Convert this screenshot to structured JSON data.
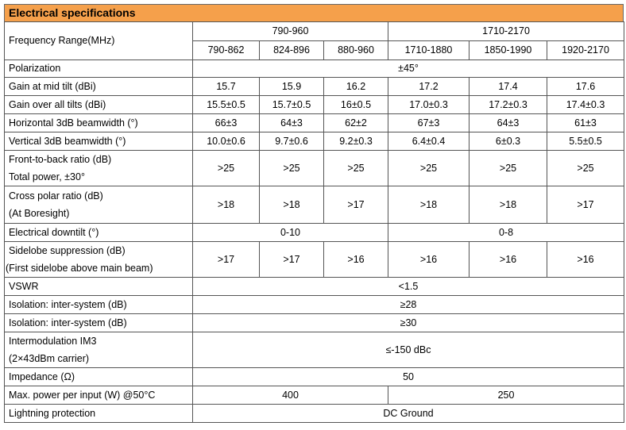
{
  "title": "Electrical specifications",
  "freq": {
    "label": "Frequency Range(MHz)",
    "groups": [
      "790-960",
      "1710-2170"
    ],
    "bands": [
      "790-862",
      "824-896",
      "880-960",
      "1710-1880",
      "1850-1990",
      "1920-2170"
    ]
  },
  "polarization": {
    "label": "Polarization",
    "value": "±45°"
  },
  "gain_mid": {
    "label": "Gain at mid tilt (dBi)",
    "values": [
      "15.7",
      "15.9",
      "16.2",
      "17.2",
      "17.4",
      "17.6"
    ]
  },
  "gain_all": {
    "label": "Gain over all tilts (dBi)",
    "values": [
      "15.5±0.5",
      "15.7±0.5",
      "16±0.5",
      "17.0±0.3",
      "17.2±0.3",
      "17.4±0.3"
    ]
  },
  "hbw": {
    "label": "Horizontal 3dB beamwidth (°)",
    "values": [
      "66±3",
      "64±3",
      "62±2",
      "67±3",
      "64±3",
      "61±3"
    ]
  },
  "vbw": {
    "label": "Vertical 3dB beamwidth (°)",
    "values": [
      "10.0±0.6",
      "9.7±0.6",
      "9.2±0.3",
      "6.4±0.4",
      "6±0.3",
      "5.5±0.5"
    ]
  },
  "ftb": {
    "label_line1": "Front-to-back ratio (dB)",
    "label_line2": "Total power, ±30°",
    "values": [
      ">25",
      ">25",
      ">25",
      ">25",
      ">25",
      ">25"
    ]
  },
  "cpr": {
    "label_line1": "Cross polar ratio (dB)",
    "label_line2": "(At Boresight)",
    "values": [
      ">18",
      ">18",
      ">17",
      ">18",
      ">18",
      ">17"
    ]
  },
  "downtilt": {
    "label": "Electrical downtilt (°)",
    "values": [
      "0-10",
      "0-8"
    ]
  },
  "sidelobe": {
    "label_line1": "Sidelobe suppression (dB)",
    "label_line2": "(First sidelobe above main beam)",
    "values": [
      ">17",
      ">17",
      ">16",
      ">16",
      ">16",
      ">16"
    ]
  },
  "vswr": {
    "label": "VSWR",
    "value": "<1.5"
  },
  "iso1": {
    "label": "Isolation: inter-system (dB)",
    "value": "≥28"
  },
  "iso2": {
    "label": "Isolation: inter-system (dB)",
    "value": "≥30"
  },
  "im3": {
    "label_line1": "Intermodulation IM3",
    "label_line2": "(2×43dBm carrier)",
    "value": "≤-150 dBc"
  },
  "impedance": {
    "label": "Impedance (Ω)",
    "value": "50"
  },
  "maxpower": {
    "label": "Max. power per input (W) @50°C",
    "values": [
      "400",
      "250"
    ]
  },
  "lightning": {
    "label": "Lightning protection",
    "value": "DC Ground"
  },
  "colors": {
    "header_bg": "#f5a04b",
    "border": "#555555"
  }
}
